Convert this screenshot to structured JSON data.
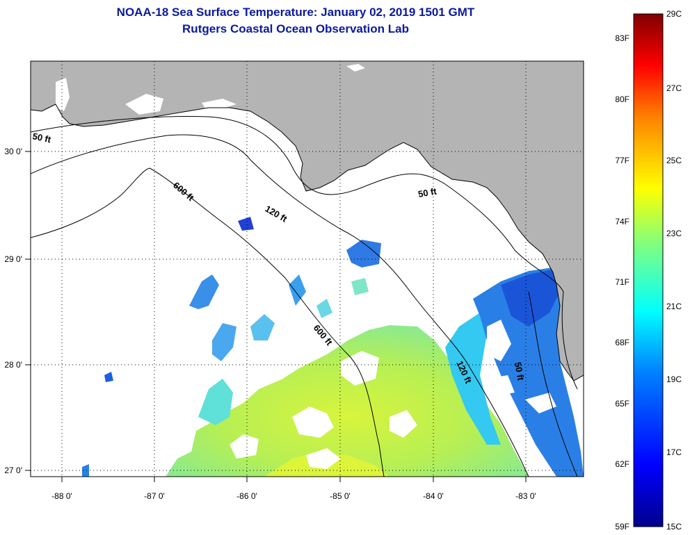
{
  "title": {
    "line1": "NOAA-18 Sea Surface Temperature:  January 02, 2019 1501 GMT",
    "line2": "Rutgers Coastal Ocean Observation Lab"
  },
  "axes": {
    "longitude_ticks": [
      "-88 0'",
      "-87 0'",
      "-86 0'",
      "-85 0'",
      "-84 0'",
      "-83 0'"
    ],
    "latitude_ticks": [
      "30 0'",
      "29 0'",
      "28 0'",
      "27 0'"
    ]
  },
  "contours": {
    "labels": [
      "50 ft",
      "600 ft",
      "120 ft",
      "50 ft",
      "600 ft",
      "120 ft",
      "50 ft"
    ]
  },
  "colorbar": {
    "fahrenheit": [
      "83F",
      "80F",
      "77F",
      "74F",
      "71F",
      "68F",
      "65F",
      "62F",
      "59F"
    ],
    "celsius": [
      "29C",
      "27C",
      "25C",
      "23C",
      "21C",
      "19C",
      "17C",
      "15C"
    ]
  },
  "colors": {
    "land": "#b4b4b4",
    "title": "#0a1a9e",
    "ocean_nodata": "#ffffff"
  }
}
